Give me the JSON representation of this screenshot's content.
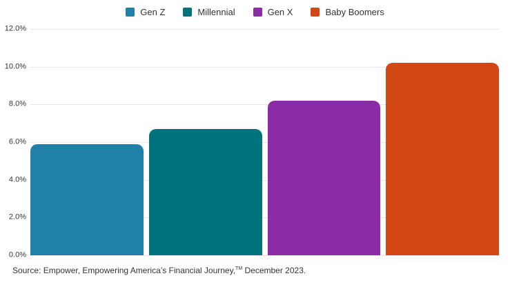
{
  "chart_data": {
    "type": "bar",
    "categories": [
      "Gen Z",
      "Millennial",
      "Gen X",
      "Baby Boomers"
    ],
    "values": [
      5.9,
      6.7,
      8.2,
      10.2
    ],
    "bar_colors": [
      "#2080A8",
      "#00737C",
      "#8C2BA6",
      "#D34715"
    ],
    "title": "",
    "xlabel": "",
    "ylabel": "",
    "ylim": [
      0,
      12
    ],
    "ytick_step": 2,
    "ytick_labels": [
      "0.0%",
      "2.0%",
      "4.0%",
      "6.0%",
      "8.0%",
      "10.0%",
      "12.0%"
    ],
    "grid": true,
    "legend_position": "top-center"
  },
  "legend": {
    "items": [
      {
        "label": "Gen Z",
        "color": "#2080A8"
      },
      {
        "label": "Millennial",
        "color": "#00737C"
      },
      {
        "label": "Gen X",
        "color": "#8C2BA6"
      },
      {
        "label": "Baby Boomers",
        "color": "#D34715"
      }
    ]
  },
  "footer": {
    "source_prefix": "Source: Empower, Empowering America’s Financial Journey,",
    "source_tm": "TM",
    "source_suffix": " December 2023."
  },
  "colors": {
    "background": "#FFFFFF",
    "gridline": "#E7E7E7",
    "text": "#333333"
  }
}
